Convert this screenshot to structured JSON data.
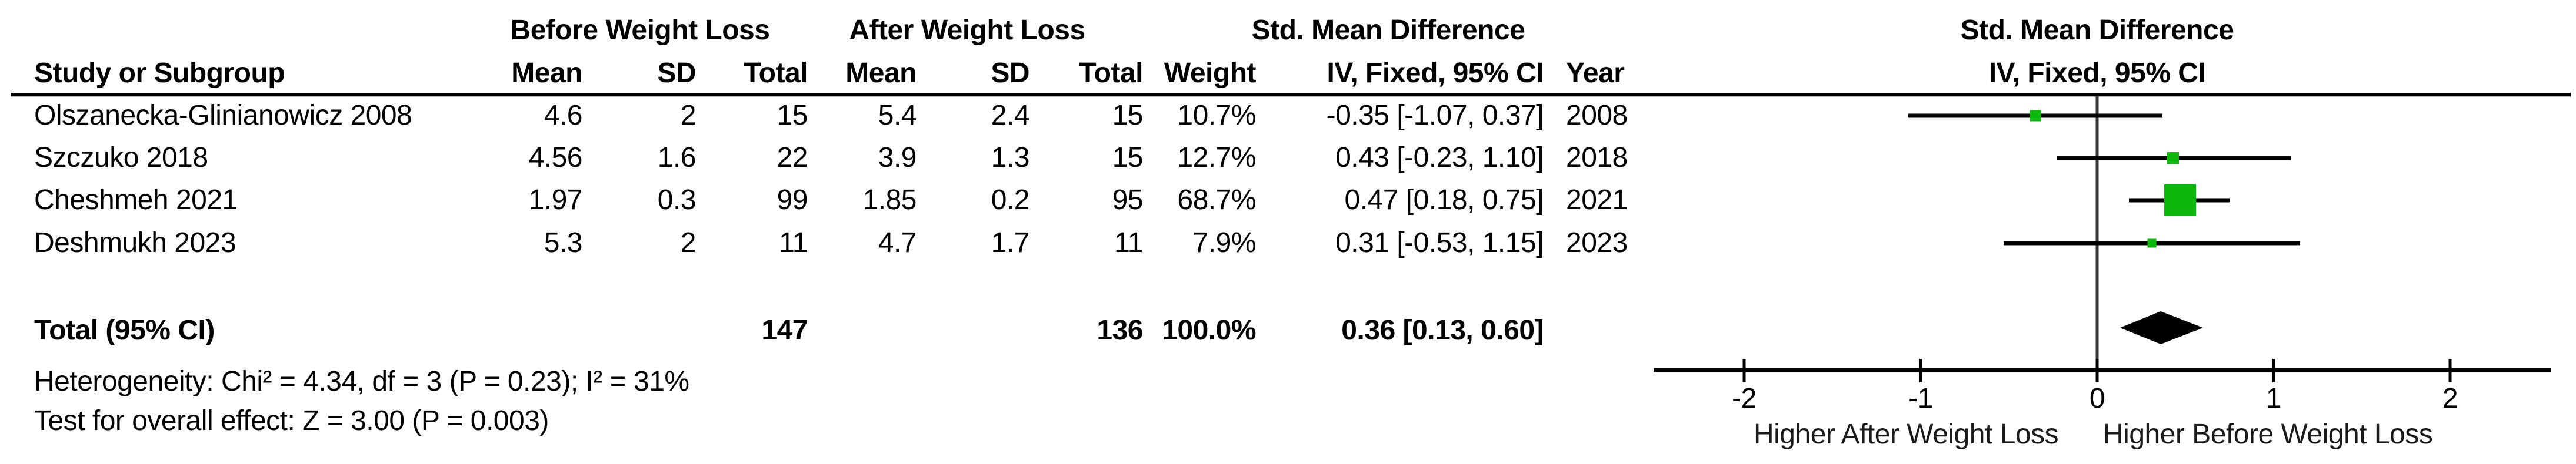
{
  "table": {
    "group1_header": "Before Weight Loss",
    "group2_header": "After Weight Loss",
    "effect_header": "Std. Mean Difference",
    "col_headers": {
      "study": "Study or Subgroup",
      "mean": "Mean",
      "sd": "SD",
      "total": "Total",
      "weight": "Weight",
      "ci": "IV, Fixed, 95% CI",
      "year": "Year"
    },
    "rows": [
      {
        "study": "Olszanecka-Glinianowicz 2008",
        "mean1": "4.6",
        "sd1": "2",
        "total1": "15",
        "mean2": "5.4",
        "sd2": "2.4",
        "total2": "15",
        "weight": "10.7%",
        "ci": "-0.35 [-1.07, 0.37]",
        "year": "2008"
      },
      {
        "study": "Szczuko 2018",
        "mean1": "4.56",
        "sd1": "1.6",
        "total1": "22",
        "mean2": "3.9",
        "sd2": "1.3",
        "total2": "15",
        "weight": "12.7%",
        "ci": "0.43 [-0.23, 1.10]",
        "year": "2018"
      },
      {
        "study": "Cheshmeh 2021",
        "mean1": "1.97",
        "sd1": "0.3",
        "total1": "99",
        "mean2": "1.85",
        "sd2": "0.2",
        "total2": "95",
        "weight": "68.7%",
        "ci": "0.47 [0.18, 0.75]",
        "year": "2021"
      },
      {
        "study": "Deshmukh 2023",
        "mean1": "5.3",
        "sd1": "2",
        "total1": "11",
        "mean2": "4.7",
        "sd2": "1.7",
        "total2": "11",
        "weight": "7.9%",
        "ci": "0.31 [-0.53, 1.15]",
        "year": "2023"
      }
    ],
    "total_row": {
      "label": "Total (95% CI)",
      "total1": "147",
      "total2": "136",
      "weight": "100.0%",
      "ci": "0.36 [0.13, 0.60]"
    },
    "footnote1": "Heterogeneity: Chi² = 4.34, df = 3 (P = 0.23); I² = 31%",
    "footnote2": "Test for overall effect: Z = 3.00 (P = 0.003)"
  },
  "plot": {
    "header_line1": "Std. Mean Difference",
    "header_line2": "IV, Fixed, 95% CI",
    "xlabel_left": "Higher After Weight Loss",
    "xlabel_right": "Higher Before Weight Loss",
    "marker_color": "#0cb80c",
    "diamond_color": "#000000",
    "line_color": "#000000",
    "zero_line_color": "#3a3a3a"
  },
  "chart_data": {
    "type": "forest",
    "title": "Std. Mean Difference, IV, Fixed, 95% CI",
    "xticks": [
      -2,
      -1,
      0,
      1,
      2
    ],
    "xlim": [
      -2.6,
      2.57
    ],
    "studies": [
      {
        "name": "Olszanecka-Glinianowicz 2008",
        "year": 2008,
        "est": -0.35,
        "lo": -1.07,
        "hi": 0.37,
        "weight_pct": 10.7,
        "marker_px": 19
      },
      {
        "name": "Szczuko 2018",
        "year": 2018,
        "est": 0.43,
        "lo": -0.23,
        "hi": 1.1,
        "weight_pct": 12.7,
        "marker_px": 20
      },
      {
        "name": "Cheshmeh 2021",
        "year": 2021,
        "est": 0.47,
        "lo": 0.18,
        "hi": 0.75,
        "weight_pct": 68.7,
        "marker_px": 54
      },
      {
        "name": "Deshmukh 2023",
        "year": 2023,
        "est": 0.31,
        "lo": -0.53,
        "hi": 1.15,
        "weight_pct": 7.9,
        "marker_px": 15
      }
    ],
    "total": {
      "label": "Total (95% CI)",
      "est": 0.36,
      "lo": 0.13,
      "hi": 0.6,
      "n1": 147,
      "n2": 136,
      "weight_pct": 100.0
    },
    "heterogeneity": {
      "chi2": 4.34,
      "df": 3,
      "p": 0.23,
      "i2_pct": 31
    },
    "overall_effect": {
      "z": 3.0,
      "p": 0.003
    },
    "layout": {
      "zero_x": 785,
      "unit": 300,
      "axis_y": 630,
      "axis_x1": 31,
      "axis_x2": 1556,
      "tick_top": 611,
      "tick_bot": 651,
      "tick_label_y": 694,
      "zero_top": 164,
      "row_y": [
        197,
        269,
        341,
        414
      ],
      "diamond_cy": 558,
      "diamond_hh": 28,
      "ci_stroke": 7,
      "axis_stroke": 7,
      "tick_stroke": 5,
      "zero_stroke": 5
    }
  }
}
